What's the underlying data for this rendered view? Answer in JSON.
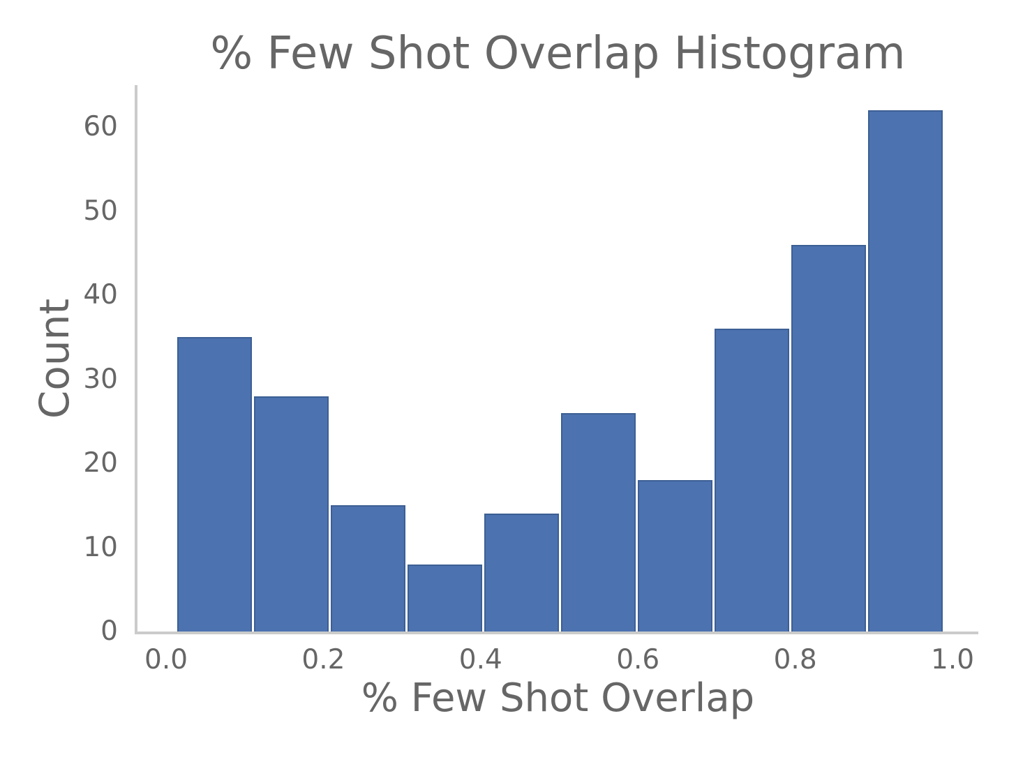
{
  "chart_data": {
    "type": "bar",
    "subtype": "histogram",
    "title": "% Few Shot Overlap Histogram",
    "xlabel": "% Few Shot Overlap",
    "ylabel": "Count",
    "bins": {
      "start": 0.013,
      "end": 0.989,
      "n": 10,
      "bin_width": 0.0976
    },
    "counts": [
      35,
      28,
      15,
      8,
      14,
      26,
      18,
      36,
      46,
      62
    ],
    "x_tick_values": [
      0.0,
      0.2,
      0.4,
      0.6,
      0.8,
      1.0
    ],
    "x_tick_labels": [
      "0.0",
      "0.2",
      "0.4",
      "0.6",
      "0.8",
      "1.0"
    ],
    "y_tick_values": [
      0,
      10,
      20,
      30,
      40,
      50,
      60
    ],
    "xlim": [
      -0.0364,
      1.0328
    ],
    "ylim": [
      0,
      65
    ],
    "grid": false,
    "legend": null
  },
  "colors": {
    "bar_fill": "#4C72B0",
    "bar_edge": "#3C5F94",
    "axis_line": "#cbcbcb",
    "text": "#666666",
    "background": "#ffffff"
  }
}
